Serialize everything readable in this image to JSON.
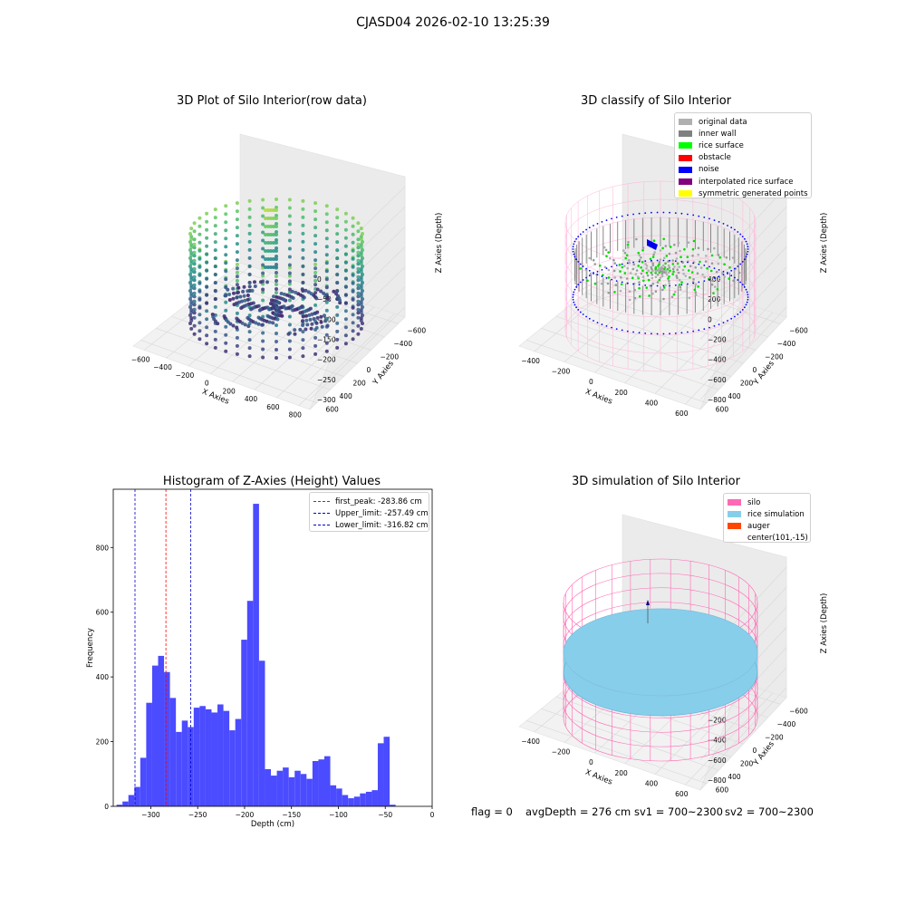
{
  "figure": {
    "suptitle": "CJASD04 2026-02-10 13:25:39",
    "footer": {
      "flag": "flag = 0",
      "avg_depth": "avgDepth = 276 cm",
      "sv1": "sv1 = 700~2300",
      "sv2": "sv2 = 700~2300"
    }
  },
  "colors": {
    "bar": "#4b4bff",
    "first_peak": "#ff0000",
    "limit": "#0000cc",
    "silo": "#ff69b4",
    "rice_simulation": "#87ceeb",
    "auger": "#ff4500",
    "original": "#b0b0b0",
    "inner_wall": "#808080",
    "rice_surface": "#00ff00",
    "obstacle": "#ff0000",
    "noise": "#0000ff",
    "interpolated": "#800080",
    "symmetric": "#ffff00"
  },
  "chart_data": [
    {
      "type": "scatter",
      "is_3d": true,
      "title": "3D Plot of Silo Interior(row data)",
      "xlabel": "X Axies",
      "ylabel": "Y Axies",
      "zlabel": "Z Axies (Depth)",
      "x_ticks": [
        "−600",
        "−400",
        "−200",
        "0",
        "200",
        "400",
        "600",
        "800"
      ],
      "y_ticks": [
        "−600",
        "−400",
        "−200",
        "0",
        "200",
        "400",
        "600"
      ],
      "z_ticks": [
        "0",
        "−50",
        "−100",
        "−150",
        "−200",
        "−250",
        "−300"
      ],
      "colormap": "viridis"
    },
    {
      "type": "scatter",
      "is_3d": true,
      "title": "3D classify of Silo Interior",
      "xlabel": "X Axies",
      "ylabel": "Y Axies",
      "zlabel": "Z Axies (Depth)",
      "x_ticks": [
        "−400",
        "−200",
        "0",
        "200",
        "400",
        "600"
      ],
      "y_ticks": [
        "−600",
        "−400",
        "−200",
        "0",
        "200",
        "400",
        "600"
      ],
      "z_ticks": [
        "400",
        "200",
        "0",
        "−200",
        "−400",
        "−600",
        "−800"
      ],
      "legend": [
        "original data",
        "inner wall",
        "rice surface",
        "obstacle",
        "noise",
        "interpolated rice surface",
        "symmetric generated points"
      ],
      "legend_position": "top-right"
    },
    {
      "type": "bar",
      "title": "Histogram of Z-Axies (Height) Values",
      "xlabel": "Depth (cm)",
      "ylabel": "Frequency",
      "xlim": [
        -340,
        0
      ],
      "ylim": [
        0,
        980
      ],
      "x_ticks": [
        -300,
        -250,
        -200,
        -150,
        -100,
        -50,
        0
      ],
      "y_ticks": [
        0,
        200,
        400,
        600,
        800
      ],
      "bin_width": 6.33,
      "bin_start": -336.5,
      "values": [
        5,
        15,
        35,
        60,
        150,
        320,
        435,
        465,
        415,
        335,
        230,
        265,
        245,
        305,
        310,
        300,
        290,
        315,
        295,
        235,
        270,
        515,
        635,
        935,
        450,
        115,
        95,
        110,
        120,
        90,
        110,
        100,
        85,
        140,
        145,
        155,
        65,
        55,
        35,
        25,
        30,
        40,
        45,
        50,
        195,
        215,
        5
      ],
      "vlines": [
        {
          "label": "first_peak: -283.86 cm",
          "x": -283.86,
          "color": "red"
        },
        {
          "label": "Upper_limit: -257.49 cm",
          "x": -257.49,
          "color": "blue"
        },
        {
          "label": "Lower_limit: -316.82 cm",
          "x": -316.82,
          "color": "blue"
        }
      ],
      "legend_position": "top-right"
    },
    {
      "type": "scatter",
      "is_3d": true,
      "title": "3D simulation of Silo Interior",
      "xlabel": "X Axies",
      "ylabel": "Y Axies",
      "zlabel": "Z Axies (Depth)",
      "x_ticks": [
        "−400",
        "−200",
        "0",
        "200",
        "400",
        "600"
      ],
      "y_ticks": [
        "−600",
        "−400",
        "−200",
        "0",
        "200",
        "400",
        "600"
      ],
      "z_ticks": [
        "400",
        "200",
        "0",
        "−200",
        "−400",
        "−600",
        "−800"
      ],
      "legend": [
        "silo",
        "rice simulation",
        "auger",
        "center(101,-15)"
      ],
      "legend_position": "top-right"
    }
  ]
}
